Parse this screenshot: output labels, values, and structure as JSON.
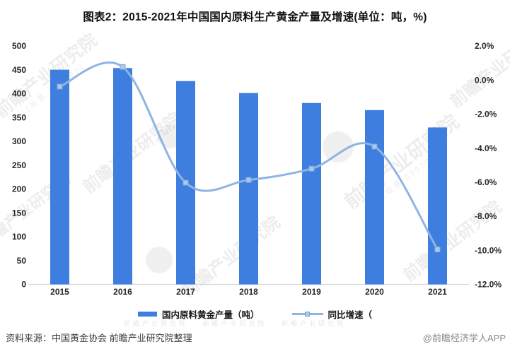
{
  "title": "图表2：2015-2021年中国国内原料生产黄金产量及增速(单位：吨，%)",
  "legend": {
    "bar_label": "国内原料黄金产量（吨）",
    "line_label": "同比增速（"
  },
  "footer": {
    "source": "资料来源：中国黄金协会 前瞻产业研究院整理",
    "attribution": "@前瞻经济学人APP"
  },
  "watermark": {
    "text": "前瞻产业研究院",
    "sub": "(股票 839599)"
  },
  "colors": {
    "bar": "#3E7EDE",
    "line": "#8FB4E3",
    "marker_fill": "#A9C9EC",
    "marker_stroke": "#7EA6D9",
    "axis_line": "#D8D8D8",
    "tick_text": "#262626"
  },
  "chart_data": {
    "type": "bar",
    "title": "图表2：2015-2021年中国国内原料生产黄金产量及增速(单位：吨，%)",
    "categories": [
      "2015",
      "2016",
      "2017",
      "2018",
      "2019",
      "2020",
      "2021"
    ],
    "series": [
      {
        "name": "国内原料黄金产量（吨）",
        "type": "bar",
        "axis": "left",
        "unit": "吨",
        "values": [
          450.05,
          453.49,
          426.14,
          401.12,
          380.23,
          365.34,
          328.98
        ]
      },
      {
        "name": "同比增速",
        "type": "line",
        "axis": "right",
        "unit": "%",
        "values": [
          -0.39,
          0.76,
          -6.03,
          -5.87,
          -5.21,
          -3.91,
          -9.95
        ]
      }
    ],
    "left_axis": {
      "min": 0,
      "max": 500,
      "step": 50,
      "ticks": [
        "0",
        "50",
        "100",
        "150",
        "200",
        "250",
        "300",
        "350",
        "400",
        "450",
        "500"
      ]
    },
    "right_axis": {
      "min": -12,
      "max": 2,
      "step": 2,
      "ticks": [
        "2.0%",
        "0.0%",
        "-2.0%",
        "-4.0%",
        "-6.0%",
        "-8.0%",
        "-10.0%",
        "-12.0%"
      ]
    },
    "xlabel": "",
    "ylabel": "",
    "grid": false,
    "legend_position": "bottom"
  }
}
